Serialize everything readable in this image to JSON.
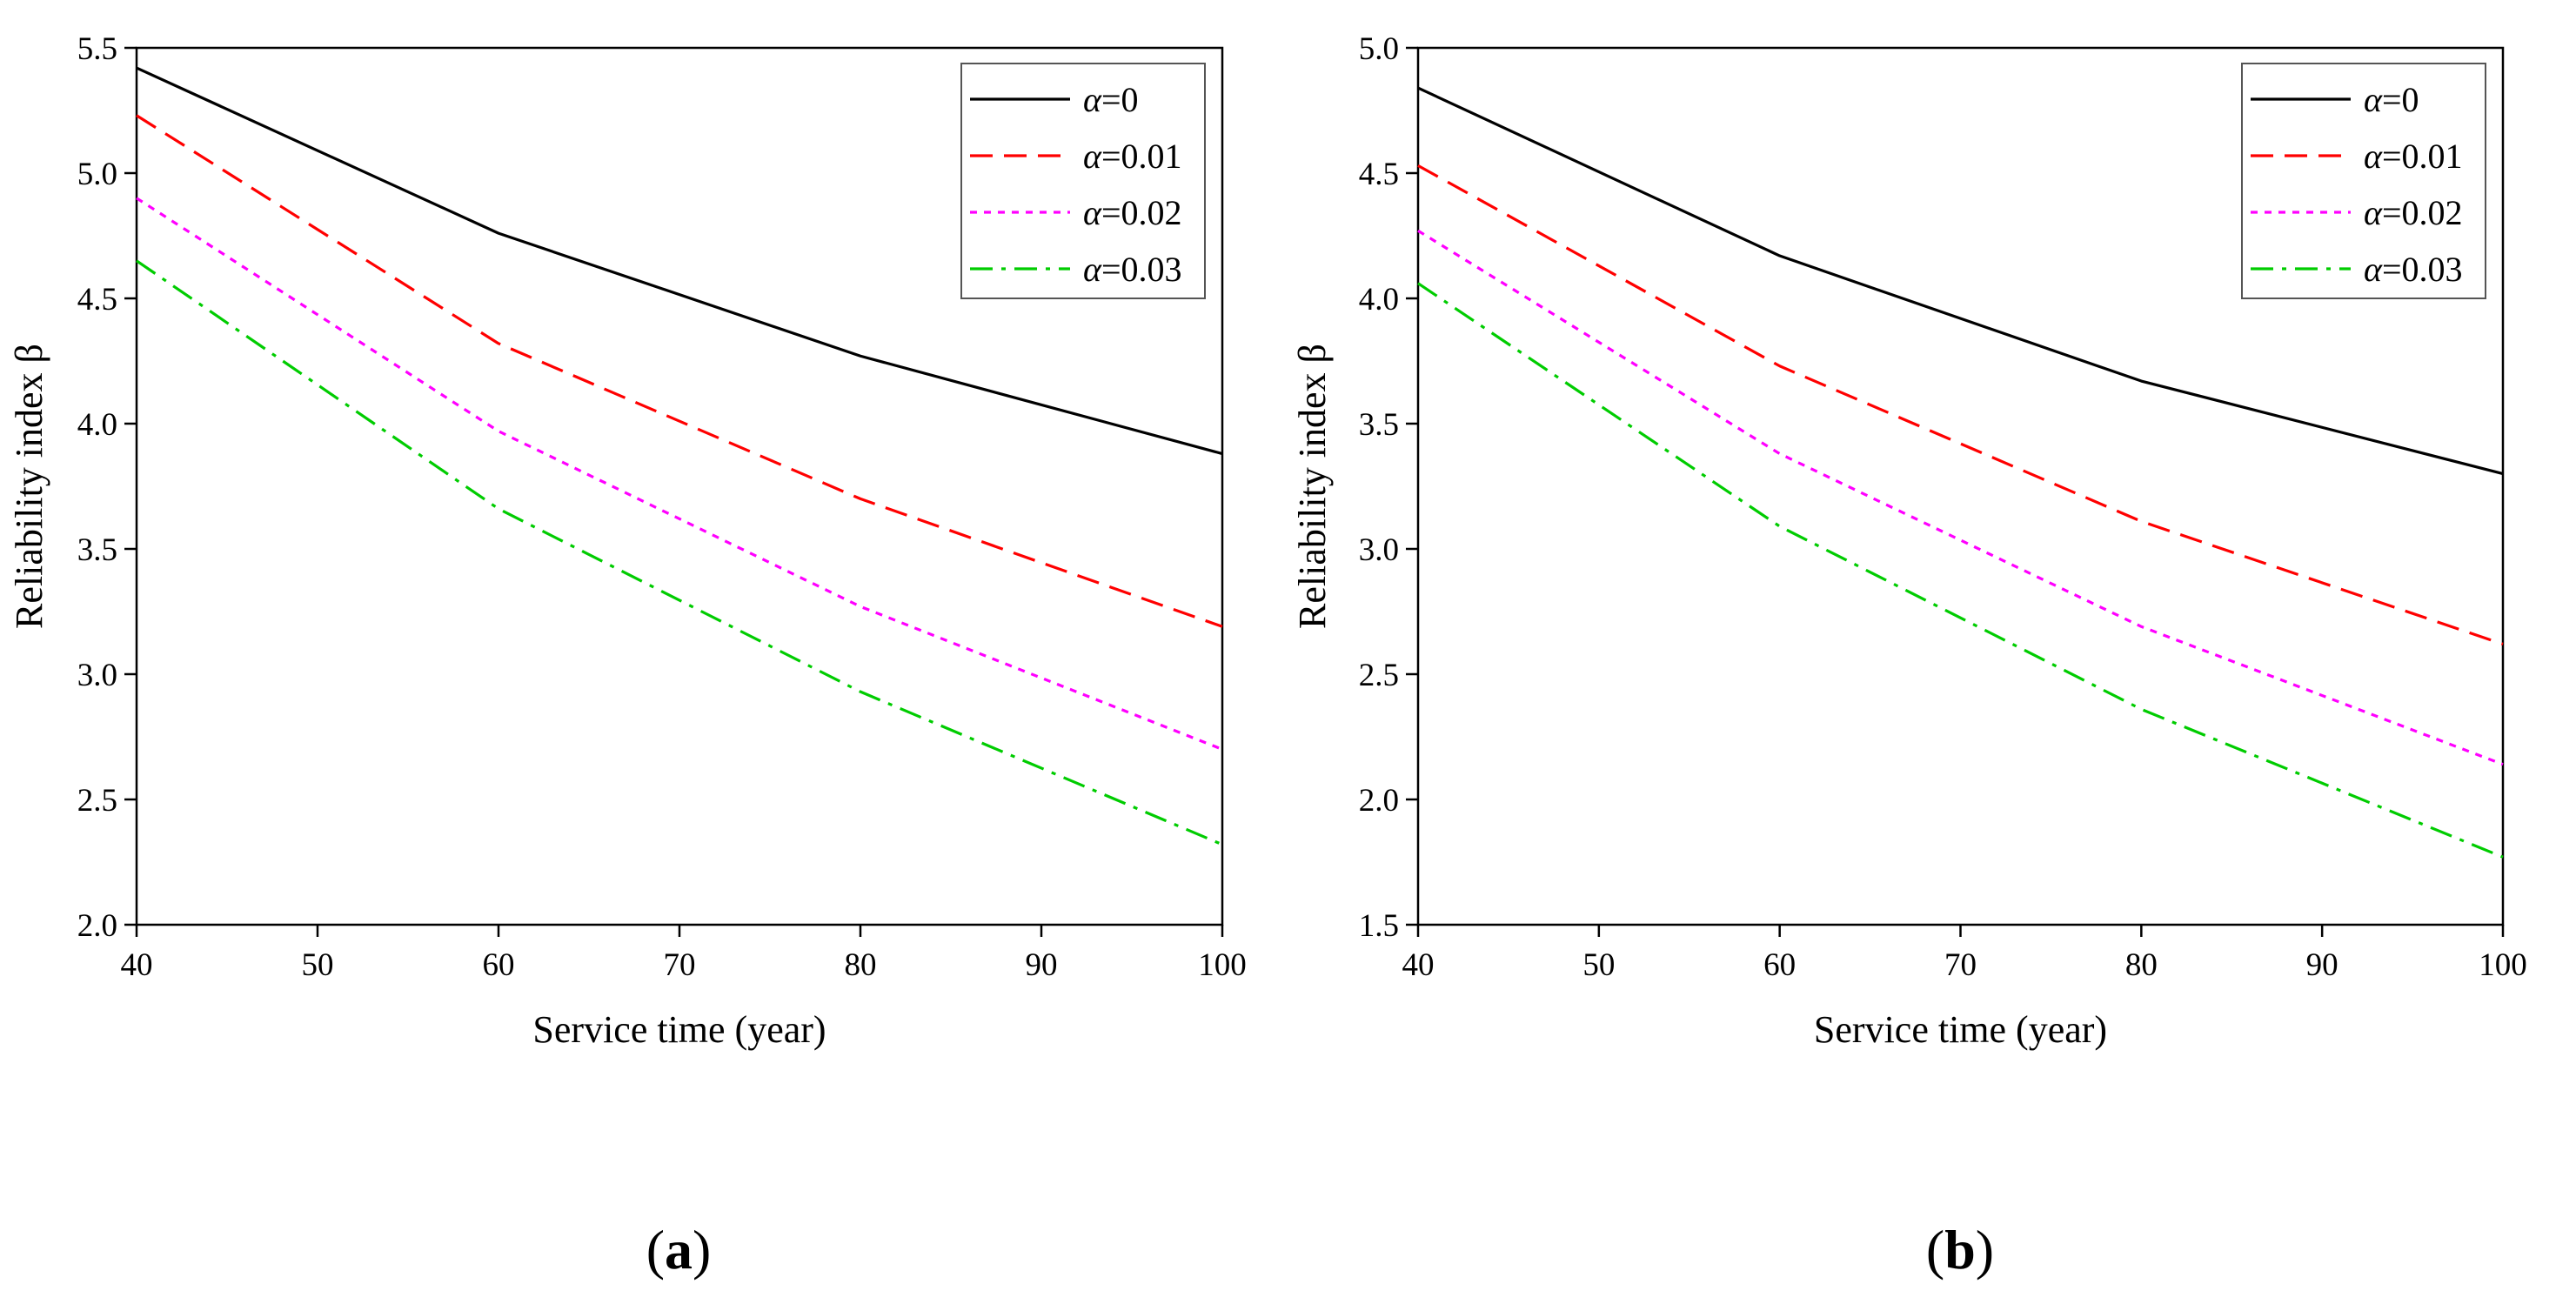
{
  "chart_data": [
    {
      "type": "line",
      "panel_label": "(a)",
      "panel_letter": "a",
      "title": "",
      "xlabel": "Service time (year)",
      "ylabel": "Reliability index β",
      "xlim": [
        40,
        100
      ],
      "ylim": [
        2.0,
        5.5
      ],
      "xticks": [
        40,
        50,
        60,
        70,
        80,
        90,
        100
      ],
      "yticks": [
        2.0,
        2.5,
        3.0,
        3.5,
        4.0,
        4.5,
        5.0,
        5.5
      ],
      "grid": false,
      "legend_position": "top-right",
      "x": [
        40,
        60,
        80,
        100
      ],
      "series": [
        {
          "name": "α=0",
          "greek": "α",
          "suffix": "=0",
          "color": "#000000",
          "dash": "solid",
          "values": [
            5.42,
            4.76,
            4.27,
            3.88
          ]
        },
        {
          "name": "α=0.01",
          "greek": "α",
          "suffix": "=0.01",
          "color": "#ff0000",
          "dash": "dashed",
          "values": [
            5.23,
            4.32,
            3.7,
            3.19
          ]
        },
        {
          "name": "α=0.02",
          "greek": "α",
          "suffix": "=0.02",
          "color": "#ff00ff",
          "dash": "dotted",
          "values": [
            4.9,
            3.97,
            3.27,
            2.7
          ]
        },
        {
          "name": "α=0.03",
          "greek": "α",
          "suffix": "=0.03",
          "color": "#00cc00",
          "dash": "dashdot",
          "values": [
            4.65,
            3.66,
            2.93,
            2.32
          ]
        }
      ]
    },
    {
      "type": "line",
      "panel_label": "(b)",
      "panel_letter": "b",
      "title": "",
      "xlabel": "Service time (year)",
      "ylabel": "Reliability index β",
      "xlim": [
        40,
        100
      ],
      "ylim": [
        1.5,
        5.0
      ],
      "xticks": [
        40,
        50,
        60,
        70,
        80,
        90,
        100
      ],
      "yticks": [
        1.5,
        2.0,
        2.5,
        3.0,
        3.5,
        4.0,
        4.5,
        5.0
      ],
      "grid": false,
      "legend_position": "top-right",
      "x": [
        40,
        60,
        80,
        100
      ],
      "series": [
        {
          "name": "α=0",
          "greek": "α",
          "suffix": "=0",
          "color": "#000000",
          "dash": "solid",
          "values": [
            4.84,
            4.17,
            3.67,
            3.3
          ]
        },
        {
          "name": "α=0.01",
          "greek": "α",
          "suffix": "=0.01",
          "color": "#ff0000",
          "dash": "dashed",
          "values": [
            4.53,
            3.73,
            3.11,
            2.62
          ]
        },
        {
          "name": "α=0.02",
          "greek": "α",
          "suffix": "=0.02",
          "color": "#ff00ff",
          "dash": "dotted",
          "values": [
            4.27,
            3.38,
            2.69,
            2.14
          ]
        },
        {
          "name": "α=0.03",
          "greek": "α",
          "suffix": "=0.03",
          "color": "#00cc00",
          "dash": "dashdot",
          "values": [
            4.06,
            3.09,
            2.36,
            1.77
          ]
        }
      ]
    }
  ]
}
